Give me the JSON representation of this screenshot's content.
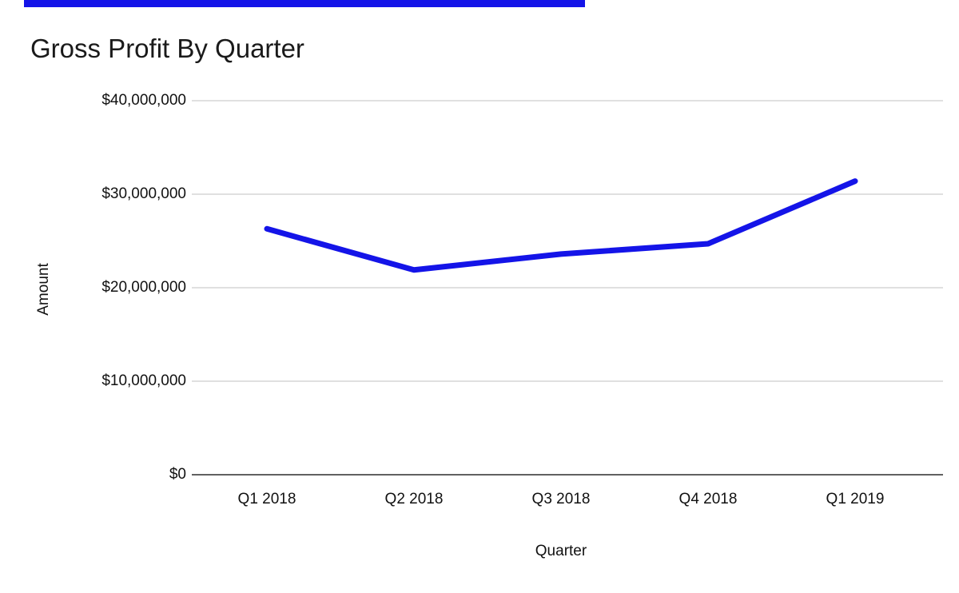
{
  "decor": {
    "top_strip_color": "#1414E8"
  },
  "chart_data": {
    "type": "line",
    "title": "Gross Profit By Quarter",
    "xlabel": "Quarter",
    "ylabel": "Amount",
    "categories": [
      "Q1 2018",
      "Q2 2018",
      "Q3 2018",
      "Q4 2018",
      "Q1 2019"
    ],
    "values": [
      26300000,
      21900000,
      23600000,
      24700000,
      31400000
    ],
    "line_color": "#1414E8",
    "line_width": 7,
    "ylim": [
      0,
      40000000
    ],
    "y_ticks": [
      0,
      10000000,
      20000000,
      30000000,
      40000000
    ],
    "y_tick_labels": [
      "$0",
      "$10,000,000",
      "$20,000,000",
      "$30,000,000",
      "$40,000,000"
    ],
    "grid": "horizontal",
    "legend": "none",
    "colors": {
      "gridline": "#E0E0E0",
      "axis_line": "#616161",
      "tick_text": "#111111",
      "background": "#FFFFFF"
    }
  }
}
